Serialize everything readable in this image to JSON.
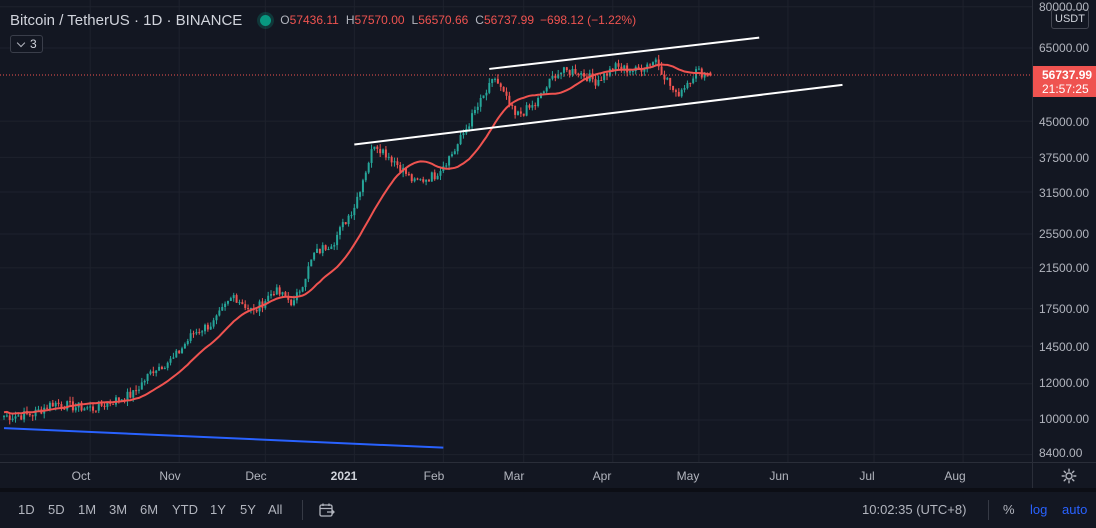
{
  "legend": {
    "title": "Bitcoin / TetherUS · 1D · BINANCE",
    "ohlc": [
      {
        "key": "O",
        "value": "57436.11"
      },
      {
        "key": "H",
        "value": "57570.00"
      },
      {
        "key": "L",
        "value": "56570.66"
      },
      {
        "key": "C",
        "value": "56737.99"
      }
    ],
    "change": "−698.12 (−1.22%)",
    "indicator_count": "3"
  },
  "price_scale": {
    "currency": "USDT",
    "ticks": [
      "80000.00",
      "65000.00",
      "45000.00",
      "37500.00",
      "31500.00",
      "25500.00",
      "21500.00",
      "17500.00",
      "14500.00",
      "12000.00",
      "10000.00",
      "8400.00"
    ],
    "last_price": "56737.99",
    "countdown": "21:57:25",
    "log_scale": true
  },
  "time_scale": {
    "labels": [
      "Oct",
      "Nov",
      "Dec",
      "2021",
      "Feb",
      "Mar",
      "Apr",
      "May",
      "Jun",
      "Jul",
      "Aug"
    ]
  },
  "bottom_bar": {
    "ranges": [
      "1D",
      "5D",
      "1M",
      "3M",
      "6M",
      "YTD",
      "1Y",
      "5Y",
      "All"
    ],
    "clock": "10:02:35 (UTC+8)",
    "percent": "%",
    "log": "log",
    "auto": "auto"
  },
  "colors": {
    "up": "#26a69a",
    "down": "#ef5350",
    "ma": "#ef5350",
    "trendline": "#ffffff",
    "long_trendline": "#2962ff",
    "last_price": "#ef5350",
    "accent": "#2962ff"
  },
  "chart_data": {
    "type": "candlestick",
    "symbol": "BTCUSDT",
    "interval": "1D",
    "scale": "log",
    "ylim": [
      8400,
      80000
    ],
    "x_range": [
      "2020-09-01",
      "2021-08-25"
    ],
    "weekly_closes": [
      [
        "2020-09-04",
        10200
      ],
      [
        "2020-09-11",
        10300
      ],
      [
        "2020-09-18",
        10900
      ],
      [
        "2020-09-25",
        10700
      ],
      [
        "2020-10-02",
        10600
      ],
      [
        "2020-10-09",
        11000
      ],
      [
        "2020-10-16",
        11400
      ],
      [
        "2020-10-23",
        12900
      ],
      [
        "2020-10-30",
        13600
      ],
      [
        "2020-11-06",
        15500
      ],
      [
        "2020-11-13",
        16300
      ],
      [
        "2020-11-20",
        18700
      ],
      [
        "2020-11-27",
        17200
      ],
      [
        "2020-12-04",
        19200
      ],
      [
        "2020-12-11",
        18000
      ],
      [
        "2020-12-18",
        23000
      ],
      [
        "2020-12-25",
        24700
      ],
      [
        "2021-01-01",
        29400
      ],
      [
        "2021-01-08",
        40300
      ],
      [
        "2021-01-15",
        36800
      ],
      [
        "2021-01-22",
        33000
      ],
      [
        "2021-01-29",
        34300
      ],
      [
        "2021-02-05",
        38900
      ],
      [
        "2021-02-12",
        47200
      ],
      [
        "2021-02-19",
        55900
      ],
      [
        "2021-02-26",
        46100
      ],
      [
        "2021-03-05",
        48800
      ],
      [
        "2021-03-12",
        57200
      ],
      [
        "2021-03-19",
        58100
      ],
      [
        "2021-03-26",
        55100
      ],
      [
        "2021-04-02",
        59000
      ],
      [
        "2021-04-09",
        58000
      ],
      [
        "2021-04-16",
        61300
      ],
      [
        "2021-04-23",
        51100
      ],
      [
        "2021-04-30",
        57800
      ],
      [
        "2021-05-05",
        56738
      ]
    ],
    "ma_series": "moving average (red)",
    "trendlines": [
      {
        "name": "upper channel",
        "from": [
          "2021-02-17",
          58500
        ],
        "to": [
          "2021-05-22",
          68500
        ]
      },
      {
        "name": "lower channel",
        "from": [
          "2021-01-01",
          40000
        ],
        "to": [
          "2021-06-20",
          54000
        ]
      },
      {
        "name": "long support",
        "from": [
          "2020-09-01",
          9600
        ],
        "to": [
          "2021-02-01",
          8700
        ]
      }
    ]
  }
}
